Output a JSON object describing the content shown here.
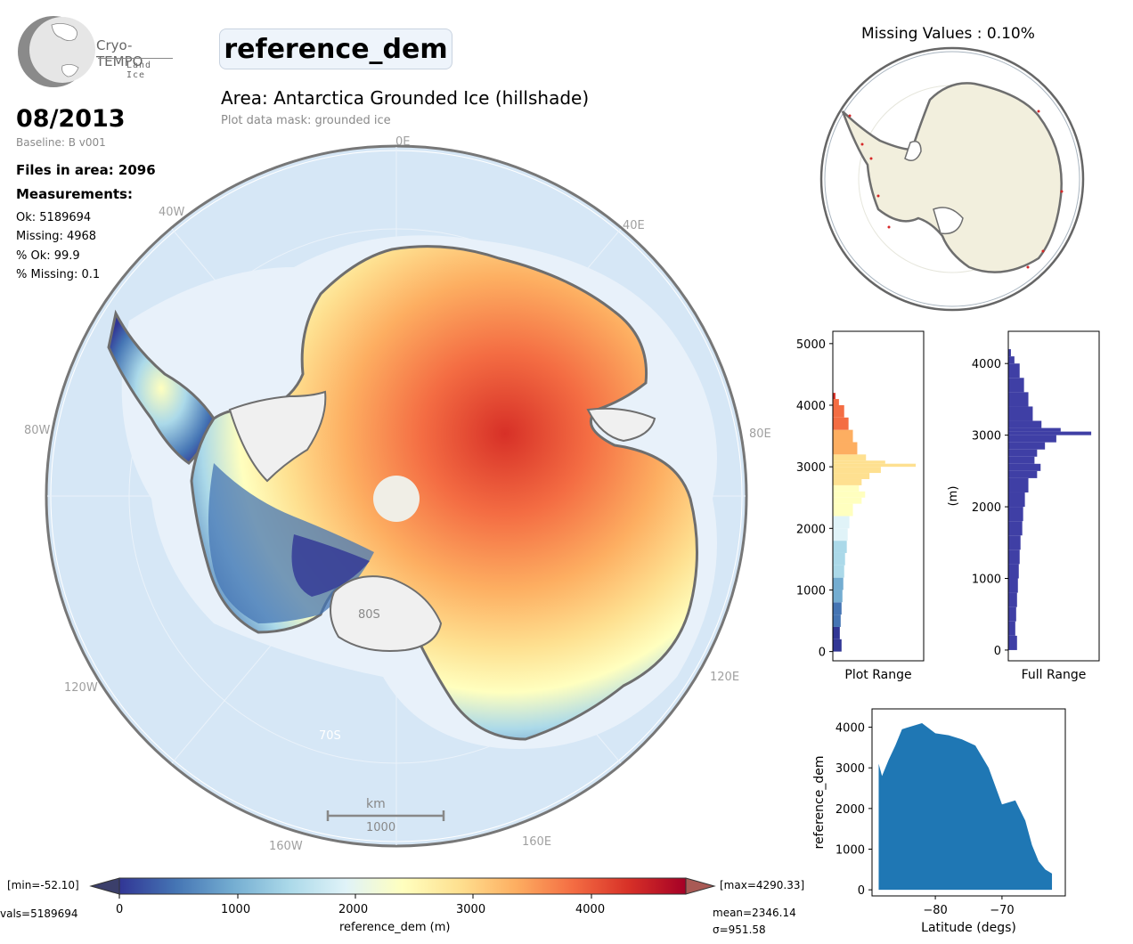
{
  "logo": {
    "brand": "Cryo-TEMPO",
    "subtitle": "Land Ice"
  },
  "header": {
    "variable": "reference_dem",
    "area": "Area: Antarctica Grounded Ice (hillshade)",
    "mask": "Plot data mask: grounded ice"
  },
  "info": {
    "date": "08/2013",
    "baseline": "Baseline: B v001",
    "files": "Files in area: 2096",
    "measurements_title": "Measurements:",
    "ok": "Ok: 5189694",
    "missing": "Missing: 4968",
    "pct_ok": "% Ok: 99.9",
    "pct_missing": "% Missing: 0.1"
  },
  "map": {
    "lon_labels": [
      "0E",
      "40E",
      "80E",
      "120E",
      "160E",
      "160W",
      "120W",
      "80W",
      "40W"
    ],
    "lat_labels": [
      "80S",
      "70S"
    ],
    "scalebar_unit": "km",
    "scalebar_value": "1000"
  },
  "colorbar": {
    "min_label": "[min=-52.10]",
    "max_label": "[max=4290.33]",
    "nvals_label": "vals=5189694",
    "mean_label": "mean=2346.14",
    "sd_label": "σ=951.58",
    "ticks": [
      "0",
      "1000",
      "2000",
      "3000",
      "4000"
    ],
    "label": "reference_dem (m)",
    "colors": [
      "#313695",
      "#4575b4",
      "#74add1",
      "#abd9e9",
      "#e0f3f8",
      "#ffffbf",
      "#fee090",
      "#fdae61",
      "#f46d43",
      "#d73027",
      "#a50026"
    ]
  },
  "missing_map": {
    "title": "Missing Values : 0.10%"
  },
  "chart_data": [
    {
      "type": "bar",
      "title": "",
      "xlabel": "Plot Range",
      "ylabel": "",
      "ylim": [
        -150,
        5200
      ],
      "yticks": [
        "0",
        "1000",
        "2000",
        "3000",
        "4000",
        "5000"
      ],
      "bins": [
        [
          0,
          0.1
        ],
        [
          200,
          0.08
        ],
        [
          400,
          0.09
        ],
        [
          600,
          0.1
        ],
        [
          800,
          0.11
        ],
        [
          1000,
          0.12
        ],
        [
          1200,
          0.13
        ],
        [
          1400,
          0.14
        ],
        [
          1600,
          0.16
        ],
        [
          1800,
          0.17
        ],
        [
          2000,
          0.19
        ],
        [
          2200,
          0.23
        ],
        [
          2400,
          0.33
        ],
        [
          2500,
          0.37
        ],
        [
          2600,
          0.3
        ],
        [
          2700,
          0.33
        ],
        [
          2800,
          0.42
        ],
        [
          2900,
          0.55
        ],
        [
          3000,
          0.95
        ],
        [
          3050,
          0.6
        ],
        [
          3100,
          0.38
        ],
        [
          3200,
          0.28
        ],
        [
          3400,
          0.23
        ],
        [
          3600,
          0.18
        ],
        [
          3800,
          0.13
        ],
        [
          4000,
          0.07
        ],
        [
          4100,
          0.03
        ]
      ]
    },
    {
      "type": "bar",
      "title": "",
      "xlabel": "Full Range",
      "ylabel": "(m)",
      "ylim": [
        -150,
        4450
      ],
      "yticks": [
        "0",
        "1000",
        "2000",
        "3000",
        "4000"
      ],
      "bins": [
        [
          0,
          0.1
        ],
        [
          200,
          0.08
        ],
        [
          400,
          0.09
        ],
        [
          600,
          0.1
        ],
        [
          800,
          0.11
        ],
        [
          1000,
          0.12
        ],
        [
          1200,
          0.13
        ],
        [
          1400,
          0.14
        ],
        [
          1600,
          0.16
        ],
        [
          1800,
          0.17
        ],
        [
          2000,
          0.19
        ],
        [
          2200,
          0.23
        ],
        [
          2400,
          0.33
        ],
        [
          2500,
          0.37
        ],
        [
          2600,
          0.3
        ],
        [
          2700,
          0.33
        ],
        [
          2800,
          0.42
        ],
        [
          2900,
          0.55
        ],
        [
          3000,
          0.95
        ],
        [
          3050,
          0.6
        ],
        [
          3100,
          0.38
        ],
        [
          3200,
          0.28
        ],
        [
          3400,
          0.23
        ],
        [
          3600,
          0.18
        ],
        [
          3800,
          0.13
        ],
        [
          4000,
          0.07
        ],
        [
          4100,
          0.03
        ]
      ]
    },
    {
      "type": "scatter",
      "title": "",
      "xlabel": "Latitude (degs)",
      "ylabel": "reference_dem",
      "xlim": [
        -89.5,
        -60.5
      ],
      "ylim": [
        -150,
        4450
      ],
      "xticks": [
        "−80",
        "−70"
      ],
      "yticks": [
        "0",
        "1000",
        "2000",
        "3000",
        "4000"
      ],
      "upper_envelope": [
        [
          -88.5,
          3100
        ],
        [
          -88,
          2800
        ],
        [
          -87,
          3200
        ],
        [
          -86,
          3550
        ],
        [
          -85,
          3950
        ],
        [
          -84,
          4000
        ],
        [
          -82,
          4100
        ],
        [
          -80,
          3850
        ],
        [
          -78,
          3800
        ],
        [
          -76,
          3700
        ],
        [
          -74,
          3550
        ],
        [
          -72,
          3000
        ],
        [
          -70,
          2100
        ],
        [
          -68,
          2200
        ],
        [
          -66.5,
          1700
        ],
        [
          -65.5,
          1100
        ],
        [
          -64.5,
          700
        ],
        [
          -63.5,
          500
        ],
        [
          -62.5,
          400
        ]
      ]
    }
  ]
}
